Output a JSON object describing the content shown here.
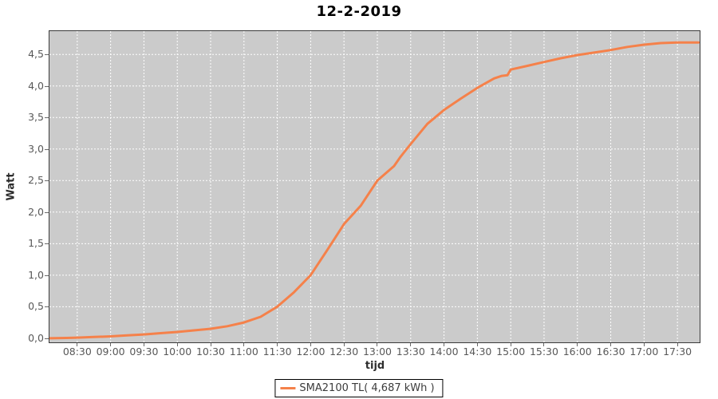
{
  "chart_data": {
    "type": "line",
    "title": "12-2-2019",
    "xlabel": "tijd",
    "ylabel": "Watt",
    "legend": [
      {
        "label": "SMA2100 TL( 4,687 kWh )",
        "color": "#f5814a",
        "position": "bottom-center"
      }
    ],
    "colors": {
      "plot_background": "#cbcbcb",
      "grid": "#ffffff",
      "line": "#f5814a",
      "plot_border": "#3a3a3a",
      "tick_label": "#585858",
      "axis_label": "#2e2e2e",
      "title": "#000000"
    },
    "grid": {
      "visible": true,
      "style": "dashed",
      "x_every": "30min",
      "y_every": 0.5
    },
    "x_ticks": [
      {
        "label": "08:30"
      },
      {
        "label": "09:00"
      },
      {
        "label": "09:30"
      },
      {
        "label": "10:00"
      },
      {
        "label": "10:30"
      },
      {
        "label": "11:00"
      },
      {
        "label": "11:30"
      },
      {
        "label": "12:00"
      },
      {
        "label": "12:30"
      },
      {
        "label": "13:00"
      },
      {
        "label": "13:30"
      },
      {
        "label": "14:00"
      },
      {
        "label": "14:30"
      },
      {
        "label": "15:00"
      },
      {
        "label": "15:30"
      },
      {
        "label": "16:00"
      },
      {
        "label": "16:30"
      },
      {
        "label": "17:00"
      },
      {
        "label": "17:30"
      }
    ],
    "y_ticks": [
      {
        "label": "0,0",
        "value": 0.0
      },
      {
        "label": "0,5",
        "value": 0.5
      },
      {
        "label": "1,0",
        "value": 1.0
      },
      {
        "label": "1,5",
        "value": 1.5
      },
      {
        "label": "2,0",
        "value": 2.0
      },
      {
        "label": "2,5",
        "value": 2.5
      },
      {
        "label": "3,0",
        "value": 3.0
      },
      {
        "label": "3,5",
        "value": 3.5
      },
      {
        "label": "4,0",
        "value": 4.0
      },
      {
        "label": "4,5",
        "value": 4.5
      }
    ],
    "xlim_time": [
      "08:05",
      "17:50"
    ],
    "ylim": [
      -0.065,
      4.87
    ],
    "series": [
      {
        "name": "SMA2100 TL",
        "color": "#f5814a",
        "unit": "kWh",
        "total_kwh_label": "4,687",
        "points": [
          [
            "08:05",
            0.0
          ],
          [
            "08:20",
            0.005
          ],
          [
            "08:30",
            0.01
          ],
          [
            "08:45",
            0.02
          ],
          [
            "09:00",
            0.03
          ],
          [
            "09:15",
            0.045
          ],
          [
            "09:30",
            0.06
          ],
          [
            "09:45",
            0.08
          ],
          [
            "10:00",
            0.1
          ],
          [
            "10:15",
            0.125
          ],
          [
            "10:30",
            0.15
          ],
          [
            "10:45",
            0.19
          ],
          [
            "11:00",
            0.25
          ],
          [
            "11:15",
            0.34
          ],
          [
            "11:30",
            0.5
          ],
          [
            "11:45",
            0.73
          ],
          [
            "12:00",
            1.0
          ],
          [
            "12:15",
            1.4
          ],
          [
            "12:30",
            1.81
          ],
          [
            "12:45",
            2.1
          ],
          [
            "13:00",
            2.5
          ],
          [
            "13:15",
            2.73
          ],
          [
            "13:21",
            2.88
          ],
          [
            "13:30",
            3.08
          ],
          [
            "13:45",
            3.4
          ],
          [
            "14:00",
            3.62
          ],
          [
            "14:15",
            3.8
          ],
          [
            "14:30",
            3.97
          ],
          [
            "14:45",
            4.12
          ],
          [
            "14:52",
            4.16
          ],
          [
            "14:57",
            4.17
          ],
          [
            "15:00",
            4.26
          ],
          [
            "15:15",
            4.32
          ],
          [
            "15:30",
            4.38
          ],
          [
            "15:45",
            4.44
          ],
          [
            "16:00",
            4.49
          ],
          [
            "16:15",
            4.53
          ],
          [
            "16:30",
            4.57
          ],
          [
            "16:45",
            4.62
          ],
          [
            "17:00",
            4.655
          ],
          [
            "17:15",
            4.68
          ],
          [
            "17:30",
            4.69
          ],
          [
            "17:49",
            4.69
          ]
        ]
      }
    ]
  }
}
